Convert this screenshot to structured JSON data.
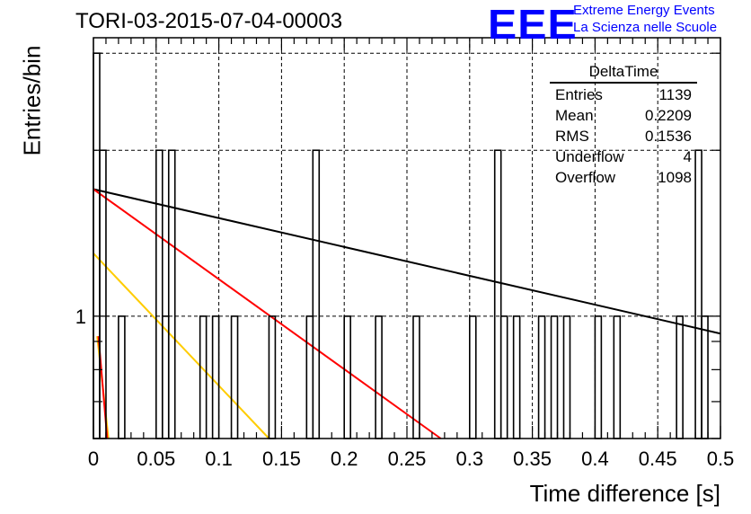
{
  "header": {
    "title": "TORI-03-2015-07-04-00003",
    "logo_text": "EEE",
    "logo_line1": "Extreme Energy Events",
    "logo_line2": "La Scienza nelle Scuole",
    "logo_color": "#0000ff"
  },
  "stats": {
    "title": "DeltaTime",
    "rows": [
      {
        "label": "Entries",
        "value": "1139"
      },
      {
        "label": "Mean",
        "value": "0.2209"
      },
      {
        "label": "RMS",
        "value": "0.1536"
      },
      {
        "label": "Underflow",
        "value": "4"
      },
      {
        "label": "Overflow",
        "value": "1098"
      }
    ]
  },
  "chart_data": {
    "type": "histogram",
    "title": "TORI-03-2015-07-04-00003",
    "xlabel": "Time difference [s]",
    "ylabel": "Entries/bin",
    "xlim": [
      0,
      0.5
    ],
    "ylim": [
      0.6,
      3.2
    ],
    "y_scale": "log",
    "grid": true,
    "bin_width": 0.005,
    "x_ticks": [
      0,
      0.05,
      0.1,
      0.15,
      0.2,
      0.25,
      0.3,
      0.35,
      0.4,
      0.45,
      0.5
    ],
    "x_tick_labels": [
      "0",
      "0.05",
      "0.1",
      "0.15",
      "0.2",
      "0.25",
      "0.3",
      "0.35",
      "0.4",
      "0.45",
      "0.5"
    ],
    "y_ticks": [
      1
    ],
    "y_tick_labels": [
      "1"
    ],
    "bins": [
      {
        "x0": 0.0,
        "count": 3
      },
      {
        "x0": 0.005,
        "count": 2
      },
      {
        "x0": 0.02,
        "count": 1
      },
      {
        "x0": 0.05,
        "count": 2
      },
      {
        "x0": 0.055,
        "count": 1
      },
      {
        "x0": 0.06,
        "count": 2
      },
      {
        "x0": 0.085,
        "count": 1
      },
      {
        "x0": 0.095,
        "count": 1
      },
      {
        "x0": 0.11,
        "count": 1
      },
      {
        "x0": 0.14,
        "count": 1
      },
      {
        "x0": 0.17,
        "count": 1
      },
      {
        "x0": 0.175,
        "count": 2
      },
      {
        "x0": 0.2,
        "count": 1
      },
      {
        "x0": 0.225,
        "count": 1
      },
      {
        "x0": 0.255,
        "count": 1
      },
      {
        "x0": 0.3,
        "count": 1
      },
      {
        "x0": 0.32,
        "count": 2
      },
      {
        "x0": 0.325,
        "count": 1
      },
      {
        "x0": 0.335,
        "count": 1
      },
      {
        "x0": 0.355,
        "count": 1
      },
      {
        "x0": 0.365,
        "count": 1
      },
      {
        "x0": 0.375,
        "count": 1
      },
      {
        "x0": 0.4,
        "count": 1
      },
      {
        "x0": 0.415,
        "count": 1
      },
      {
        "x0": 0.465,
        "count": 1
      },
      {
        "x0": 0.48,
        "count": 2
      },
      {
        "x0": 0.485,
        "count": 1
      }
    ],
    "fits": [
      {
        "color": "#000000",
        "points": [
          [
            0,
            1.7
          ],
          [
            0.5,
            0.93
          ]
        ]
      },
      {
        "color": "#ff0000",
        "points": [
          [
            0,
            1.7
          ],
          [
            0.277,
            0.6
          ]
        ]
      },
      {
        "color": "#ffcc00",
        "points": [
          [
            0,
            1.3
          ],
          [
            0.14,
            0.6
          ]
        ]
      },
      {
        "color": "#ffcc00",
        "points": [
          [
            0.003,
            0.92
          ],
          [
            0.012,
            0.6
          ]
        ]
      },
      {
        "color": "#ff0000",
        "points": [
          [
            0.004,
            0.92
          ],
          [
            0.011,
            0.6
          ]
        ]
      }
    ]
  }
}
